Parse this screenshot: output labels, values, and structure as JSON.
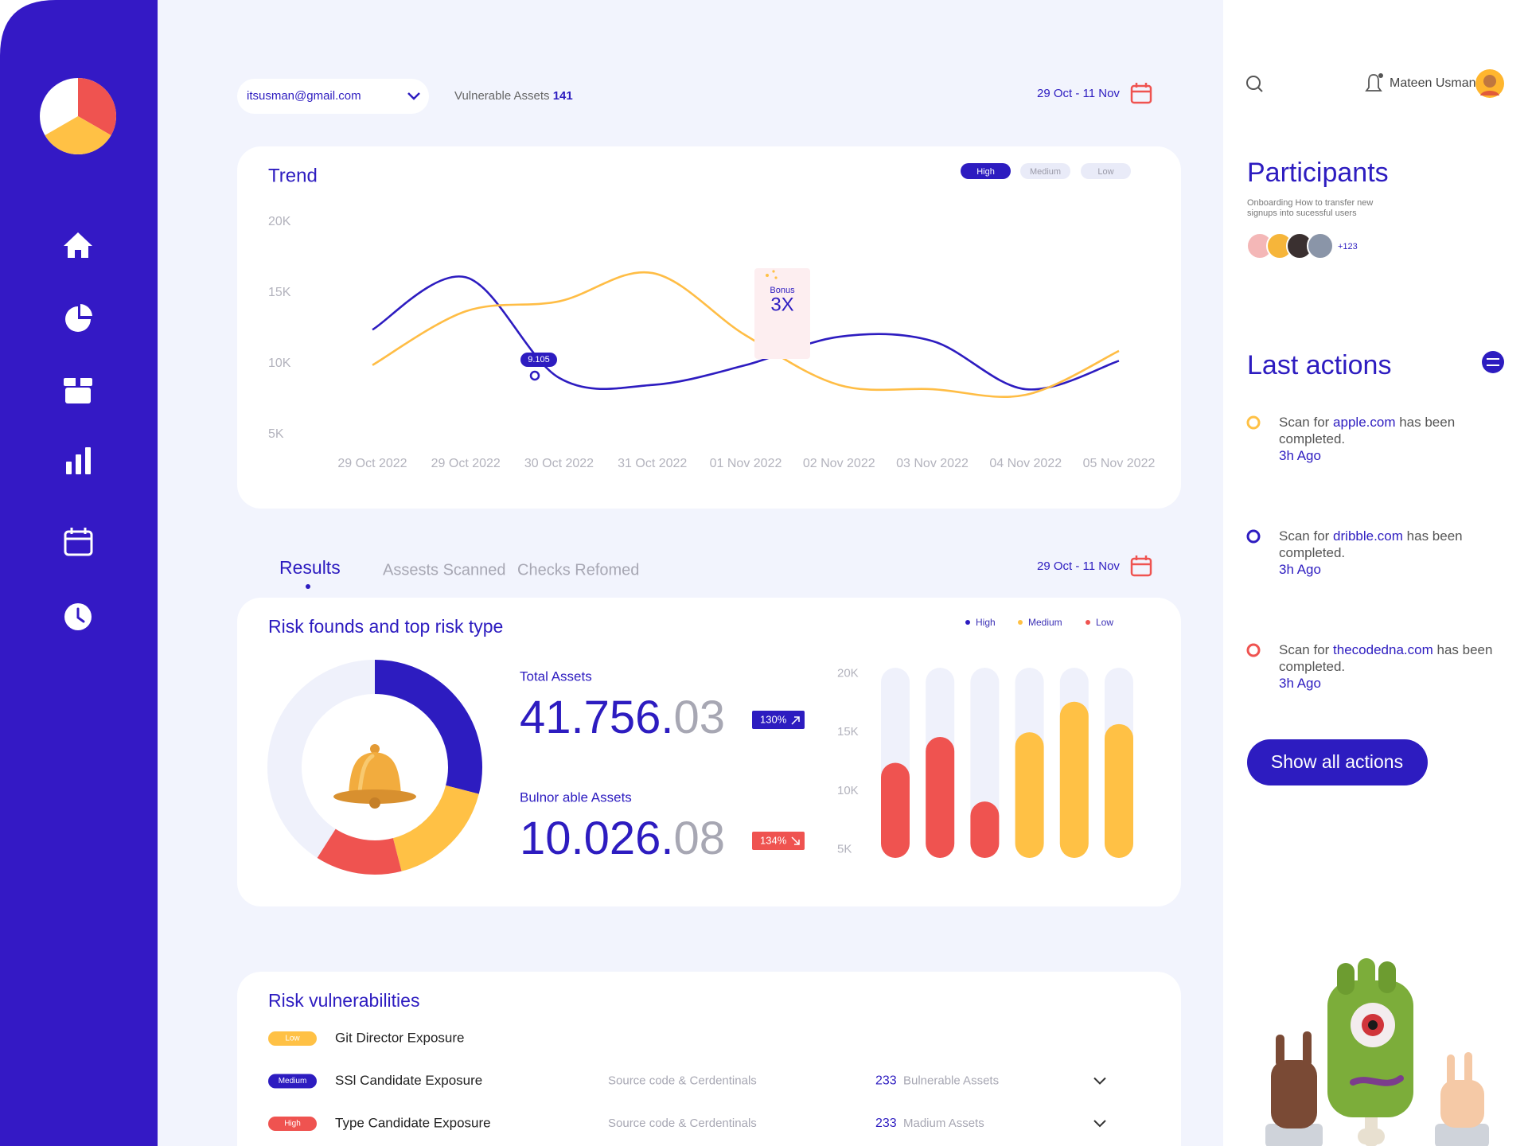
{
  "header": {
    "email": "itsusman@gmail.com",
    "vulnerable_label": "Vulnerable Assets",
    "vulnerable_count": 141,
    "date_range": "29 Oct - 11 Nov"
  },
  "user": {
    "name": "Mateen Usman"
  },
  "trend": {
    "type": "line",
    "title": "Trend",
    "filters": [
      "High",
      "Medium",
      "Low"
    ],
    "categories": [
      "29 Oct 2022",
      "29 Oct 2022",
      "30 Oct 2022",
      "31 Oct 2022",
      "01 Nov 2022",
      "02 Nov 2022",
      "03 Nov 2022",
      "04 Nov 2022",
      "05 Nov 2022"
    ],
    "ylim": [
      5000,
      20000
    ],
    "yticks": [
      {
        "value": 5000,
        "label": "5K"
      },
      {
        "value": 10000,
        "label": "10K"
      },
      {
        "value": 15000,
        "label": "15K"
      },
      {
        "value": 20000,
        "label": "20K"
      }
    ],
    "series": [
      {
        "color": "#2d1cc0",
        "values": [
          12400,
          16100,
          9000,
          8500,
          9900,
          11900,
          11600,
          8200,
          10200
        ]
      },
      {
        "color": "#ffbd45",
        "values": [
          9900,
          13700,
          14400,
          16400,
          12000,
          8500,
          8200,
          7800,
          10900
        ]
      }
    ],
    "annotations": {
      "point_label": "9.105",
      "bonus_label": "Bonus",
      "bonus_value": "3X"
    }
  },
  "tabs": [
    "Results",
    "Assests Scanned",
    "Checks Refomed"
  ],
  "risk": {
    "title": "Risk founds and top risk type",
    "legend": [
      {
        "name": "High",
        "color": "#2d1cc0"
      },
      {
        "name": "Medium",
        "color": "#ffc145"
      },
      {
        "name": "Low",
        "color": "#ef5350"
      }
    ],
    "donut": {
      "type": "donut",
      "values": [
        29,
        17,
        13
      ],
      "colors": [
        "#2d1cc0",
        "#ffc145",
        "#ef5350"
      ]
    },
    "total": {
      "label": "Total Assets",
      "integer": "41.756.",
      "decimals": "03",
      "change": "130%"
    },
    "vulnerable": {
      "label": "Bulnor able Assets",
      "integer": "10.026.",
      "decimals": "08",
      "change": "134%"
    },
    "bars": {
      "type": "bar",
      "ylim": [
        4300,
        20500
      ],
      "yticks": [
        {
          "value": 5000,
          "label": "5K"
        },
        {
          "value": 10000,
          "label": "10K"
        },
        {
          "value": 15000,
          "label": "15K"
        },
        {
          "value": 20000,
          "label": "20K"
        }
      ],
      "values": [
        12400,
        14600,
        9100,
        15000,
        17600,
        15700
      ],
      "colors": [
        "#ef5350",
        "#ef5350",
        "#ef5350",
        "#ffc145",
        "#ffc145",
        "#ffc145"
      ]
    }
  },
  "vulnerabilities": {
    "title": "Risk vulnerabilities",
    "rows": [
      {
        "level": "Low",
        "color": "#ffc145",
        "name": "Git Director Exposure"
      },
      {
        "level": "Medium",
        "color": "#2d1cc0",
        "name": "SSl Candidate Exposure",
        "source": "Source code & Cerdentinals",
        "count": 233,
        "count_label": "Bulnerable Assets"
      },
      {
        "level": "High",
        "color": "#ef5350",
        "name": "Type Candidate Exposure",
        "source": "Source code & Cerdentinals",
        "count": 233,
        "count_label": "Madium Assets"
      }
    ]
  },
  "participants": {
    "title": "Participants",
    "subtitle": "Onboarding How to transfer new signups into sucessful users",
    "more": "+123"
  },
  "actions": {
    "title": "Last actions",
    "items": [
      {
        "prefix": "Scan for",
        "site": "apple.com",
        "suffix": "has been completed.",
        "time": "3h Ago",
        "color": "#ffc145"
      },
      {
        "prefix": "Scan for",
        "site": "dribble.com",
        "suffix": "has been completed.",
        "time": "3h Ago",
        "color": "#2d1cc0"
      },
      {
        "prefix": "Scan for",
        "site": "thecodedna.com",
        "suffix": "has been completed.",
        "time": "3h Ago",
        "color": "#ef5350"
      }
    ],
    "button": "Show all actions"
  }
}
